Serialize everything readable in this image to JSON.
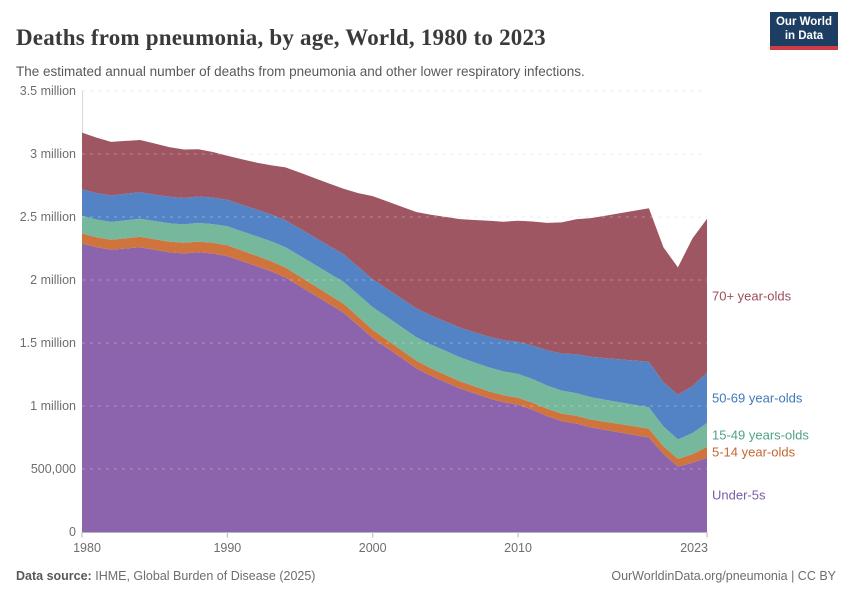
{
  "header": {
    "title": "Deaths from pneumonia, by age, World, 1980 to 2023",
    "subtitle": "The estimated annual number of deaths from pneumonia and other lower respiratory infections."
  },
  "logo": {
    "line1": "Our World",
    "line2": "in Data",
    "bg_color": "#1d3d63",
    "accent_color": "#cf3c45"
  },
  "footer": {
    "source_label": "Data source:",
    "source_text": "IHME, Global Burden of Disease (2025)",
    "right_text": "OurWorldinData.org/pneumonia | CC BY"
  },
  "chart_data": {
    "type": "area",
    "stacked": true,
    "title": "Deaths from pneumonia, by age, World, 1980 to 2023",
    "unit": "million deaths per year",
    "xlim": [
      1980,
      2023
    ],
    "ylim_millions": [
      0,
      3.5
    ],
    "grid": "dashed-horizontal",
    "legend_position": "right-inline-labels",
    "x_ticks": [
      1980,
      1990,
      2000,
      2010,
      2023
    ],
    "y_ticks": [
      {
        "value_millions": 0,
        "label": "0"
      },
      {
        "value_millions": 0.5,
        "label": "500,000"
      },
      {
        "value_millions": 1,
        "label": "1 million"
      },
      {
        "value_millions": 1.5,
        "label": "1.5 million"
      },
      {
        "value_millions": 2,
        "label": "2 million"
      },
      {
        "value_millions": 2.5,
        "label": "2.5 million"
      },
      {
        "value_millions": 3,
        "label": "3 million"
      },
      {
        "value_millions": 3.5,
        "label": "3.5 million"
      }
    ],
    "x": [
      1980,
      1981,
      1982,
      1983,
      1984,
      1985,
      1986,
      1987,
      1988,
      1989,
      1990,
      1991,
      1992,
      1993,
      1994,
      1995,
      1996,
      1997,
      1998,
      1999,
      2000,
      2001,
      2002,
      2003,
      2004,
      2005,
      2006,
      2007,
      2008,
      2009,
      2010,
      2011,
      2012,
      2013,
      2014,
      2015,
      2016,
      2017,
      2018,
      2019,
      2020,
      2021,
      2022,
      2023
    ],
    "series": [
      {
        "name": "Under-5s",
        "color": "#8b64ad",
        "label_color": "#7a5ca8",
        "values_millions": [
          2.29,
          2.26,
          2.24,
          2.25,
          2.26,
          2.24,
          2.22,
          2.21,
          2.22,
          2.21,
          2.19,
          2.15,
          2.11,
          2.07,
          2.02,
          1.95,
          1.88,
          1.81,
          1.74,
          1.64,
          1.54,
          1.46,
          1.38,
          1.3,
          1.24,
          1.19,
          1.14,
          1.1,
          1.06,
          1.03,
          1.01,
          0.97,
          0.92,
          0.88,
          0.86,
          0.83,
          0.81,
          0.79,
          0.77,
          0.75,
          0.62,
          0.52,
          0.55,
          0.59
        ]
      },
      {
        "name": "5-14 year-olds",
        "color": "#d0743e",
        "label_color": "#c86631",
        "values_millions": [
          0.08,
          0.08,
          0.08,
          0.082,
          0.083,
          0.084,
          0.085,
          0.085,
          0.085,
          0.085,
          0.086,
          0.084,
          0.082,
          0.08,
          0.079,
          0.077,
          0.075,
          0.073,
          0.071,
          0.068,
          0.065,
          0.063,
          0.061,
          0.06,
          0.059,
          0.058,
          0.057,
          0.056,
          0.056,
          0.055,
          0.055,
          0.056,
          0.058,
          0.06,
          0.062,
          0.063,
          0.065,
          0.067,
          0.069,
          0.07,
          0.06,
          0.06,
          0.068,
          0.085
        ]
      },
      {
        "name": "15-49 years-olds",
        "color": "#75b89b",
        "label_color": "#51a188",
        "values_millions": [
          0.14,
          0.14,
          0.141,
          0.142,
          0.143,
          0.144,
          0.145,
          0.146,
          0.148,
          0.149,
          0.15,
          0.153,
          0.156,
          0.158,
          0.161,
          0.165,
          0.168,
          0.171,
          0.174,
          0.177,
          0.18,
          0.183,
          0.185,
          0.187,
          0.189,
          0.19,
          0.19,
          0.19,
          0.19,
          0.19,
          0.19,
          0.188,
          0.185,
          0.182,
          0.18,
          0.178,
          0.175,
          0.173,
          0.171,
          0.17,
          0.158,
          0.155,
          0.168,
          0.19
        ]
      },
      {
        "name": "50-69 year-olds",
        "color": "#5383c4",
        "label_color": "#3e78ba",
        "values_millions": [
          0.21,
          0.21,
          0.21,
          0.21,
          0.21,
          0.21,
          0.21,
          0.21,
          0.21,
          0.21,
          0.21,
          0.211,
          0.212,
          0.213,
          0.214,
          0.215,
          0.216,
          0.217,
          0.219,
          0.22,
          0.221,
          0.223,
          0.225,
          0.228,
          0.23,
          0.233,
          0.236,
          0.24,
          0.244,
          0.248,
          0.255,
          0.265,
          0.28,
          0.295,
          0.31,
          0.32,
          0.33,
          0.34,
          0.35,
          0.36,
          0.352,
          0.355,
          0.372,
          0.4
        ]
      },
      {
        "name": "70+ year-olds",
        "color": "#9e5662",
        "label_color": "#9c4f59",
        "values_millions": [
          0.45,
          0.44,
          0.425,
          0.42,
          0.415,
          0.405,
          0.395,
          0.385,
          0.375,
          0.362,
          0.35,
          0.36,
          0.372,
          0.39,
          0.42,
          0.445,
          0.47,
          0.495,
          0.52,
          0.585,
          0.66,
          0.695,
          0.73,
          0.765,
          0.8,
          0.83,
          0.86,
          0.89,
          0.92,
          0.94,
          0.96,
          0.985,
          1.01,
          1.04,
          1.07,
          1.1,
          1.13,
          1.16,
          1.19,
          1.22,
          1.07,
          1.01,
          1.172,
          1.22
        ]
      }
    ]
  }
}
